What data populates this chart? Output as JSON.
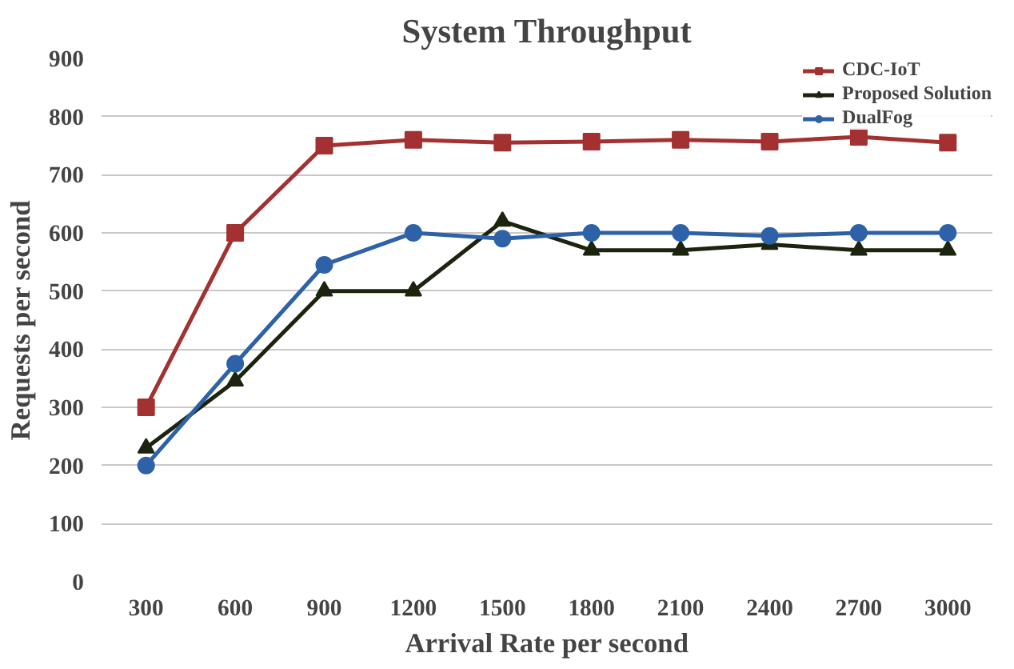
{
  "chart_data": {
    "type": "line",
    "title": "System Throughput",
    "xlabel": "Arrival Rate per second",
    "ylabel": "Requests per second",
    "categories": [
      "300",
      "600",
      "900",
      "1200",
      "1500",
      "1800",
      "2100",
      "2400",
      "2700",
      "3000"
    ],
    "series": [
      {
        "name": "CDC-IoT",
        "color": "#a33131",
        "marker": "square",
        "values": [
          300,
          600,
          750,
          760,
          755,
          757,
          760,
          757,
          765,
          755
        ]
      },
      {
        "name": "Proposed Solution",
        "color": "#1c2410",
        "marker": "triangle",
        "values": [
          230,
          345,
          500,
          500,
          620,
          570,
          570,
          580,
          570,
          570
        ]
      },
      {
        "name": "DualFog",
        "color": "#2e62a8",
        "marker": "circle",
        "values": [
          200,
          375,
          545,
          600,
          590,
          600,
          600,
          595,
          600,
          600
        ]
      }
    ],
    "ylim": [
      0,
      900
    ],
    "yticks": [
      0,
      100,
      200,
      300,
      400,
      500,
      600,
      700,
      800,
      900
    ],
    "grid": "y",
    "legend": "top right"
  }
}
